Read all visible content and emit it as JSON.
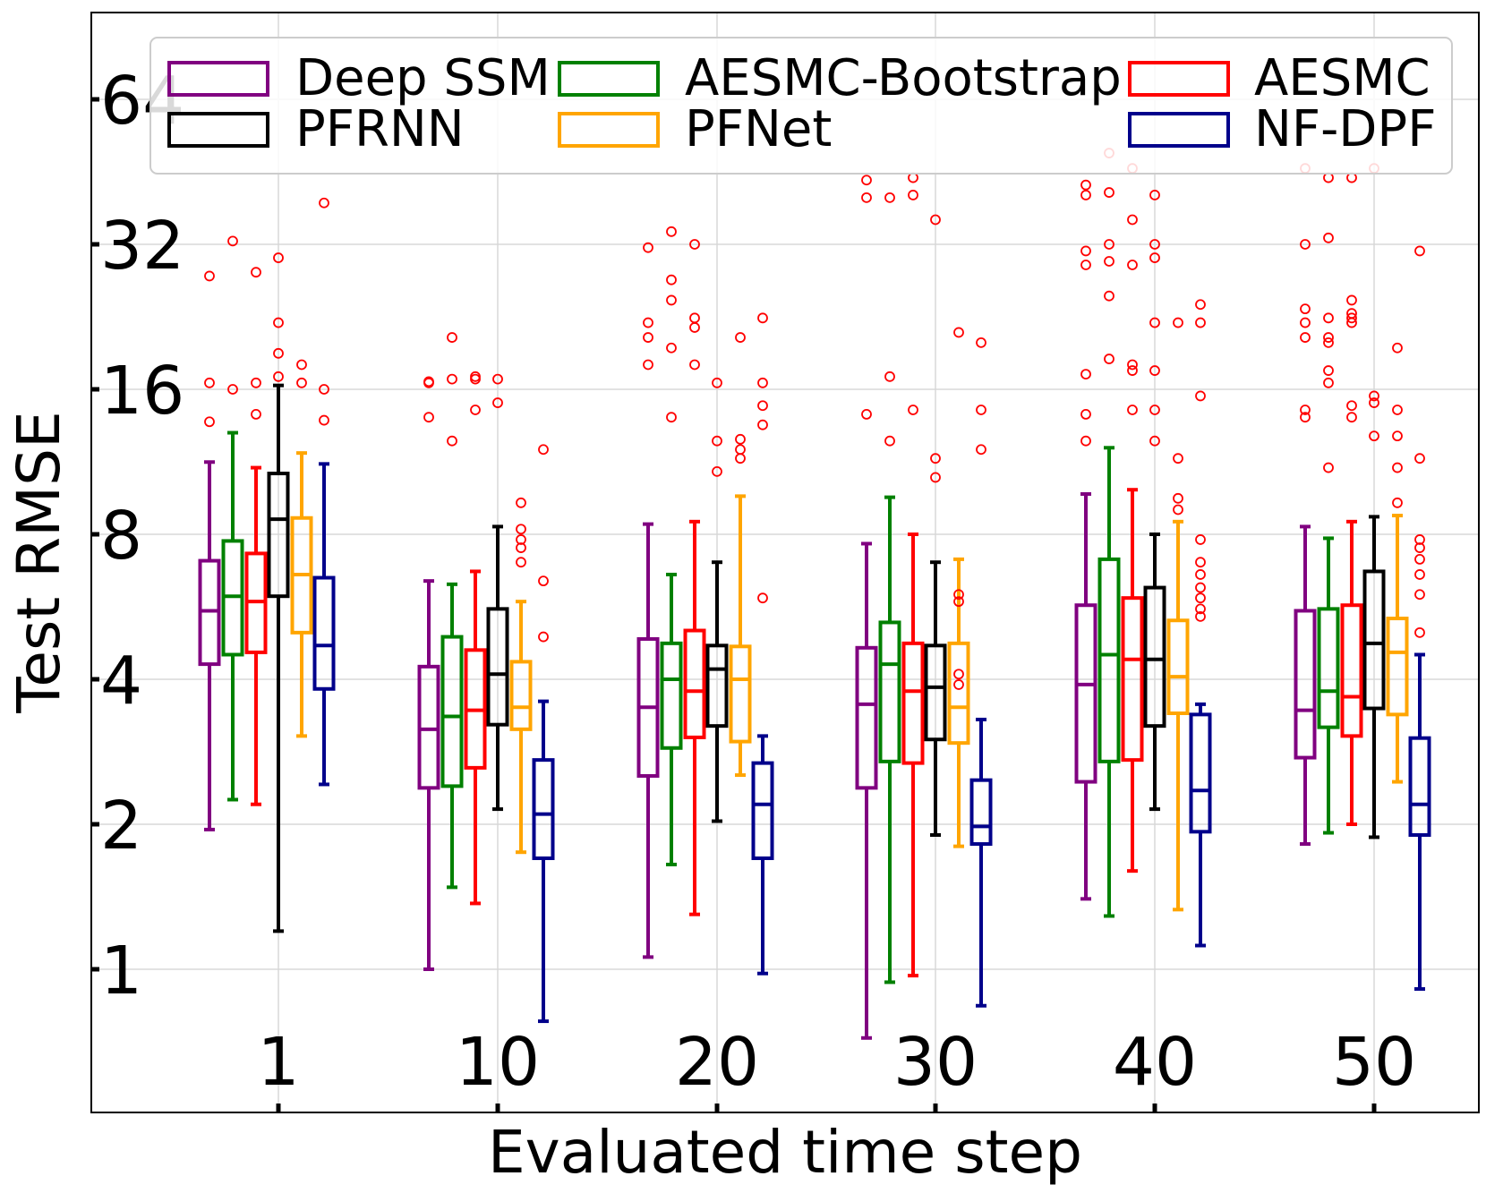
{
  "chart_data": {
    "type": "box",
    "xlabel": "Evaluated time step",
    "ylabel": "Test RMSE",
    "y_scale": "log2",
    "ylim": [
      0.75,
      90
    ],
    "y_ticks": [
      1,
      2,
      4,
      8,
      16,
      32,
      64
    ],
    "y_tick_labels": [
      "1",
      "2",
      "4",
      "8",
      "16",
      "32",
      "64"
    ],
    "categories": [
      "1",
      "10",
      "20",
      "30",
      "40",
      "50"
    ],
    "grid": true,
    "legend_position": "top",
    "outlier_color": "#ff0000",
    "series": [
      {
        "name": "Deep SSM",
        "color": "#800080",
        "boxes": [
          {
            "whislo": 1.95,
            "q1": 4.3,
            "med": 5.55,
            "q3": 7.05,
            "whishi": 11.3,
            "fliers": [
              13.7,
              16.5,
              27.5
            ]
          },
          {
            "whislo": 1.0,
            "q1": 2.38,
            "med": 3.15,
            "q3": 4.25,
            "whishi": 6.4,
            "fliers": [
              14.0,
              16.5,
              16.6
            ]
          },
          {
            "whislo": 1.06,
            "q1": 2.52,
            "med": 3.5,
            "q3": 4.85,
            "whishi": 8.4,
            "fliers": [
              18.0,
              20.5,
              22.0,
              31.5
            ]
          },
          {
            "whislo": 0.72,
            "q1": 2.38,
            "med": 3.55,
            "q3": 4.65,
            "whishi": 7.65,
            "fliers": [
              14.2,
              40.0,
              43.5
            ]
          },
          {
            "whislo": 1.4,
            "q1": 2.45,
            "med": 3.9,
            "q3": 5.7,
            "whishi": 9.7,
            "fliers": [
              12.5,
              14.2,
              17.2,
              29.0,
              31.0,
              40.5,
              42.5
            ]
          },
          {
            "whislo": 1.82,
            "q1": 2.75,
            "med": 3.45,
            "q3": 5.55,
            "whishi": 8.3,
            "fliers": [
              14.0,
              14.5,
              20.5,
              22.0,
              23.5,
              32.0,
              46.0
            ]
          }
        ]
      },
      {
        "name": "AESMC-Bootstrap",
        "color": "#008000",
        "boxes": [
          {
            "whislo": 2.25,
            "q1": 4.5,
            "med": 5.95,
            "q3": 7.75,
            "whishi": 13.0,
            "fliers": [
              16.0,
              32.5
            ]
          },
          {
            "whislo": 1.48,
            "q1": 2.4,
            "med": 3.35,
            "q3": 4.9,
            "whishi": 6.3,
            "fliers": [
              12.5,
              16.8,
              20.5
            ]
          },
          {
            "whislo": 1.65,
            "q1": 2.88,
            "med": 4.0,
            "q3": 4.75,
            "whishi": 6.6,
            "fliers": [
              14.0,
              19.5,
              24.5,
              27.0,
              34.0
            ]
          },
          {
            "whislo": 0.94,
            "q1": 2.7,
            "med": 4.3,
            "q3": 5.25,
            "whishi": 9.55,
            "fliers": [
              12.5,
              17.0,
              40.0
            ]
          },
          {
            "whislo": 1.29,
            "q1": 2.7,
            "med": 4.5,
            "q3": 7.1,
            "whishi": 12.1,
            "fliers": [
              18.5,
              25.0,
              29.5,
              32.0,
              41.0,
              49.5
            ]
          },
          {
            "whislo": 1.92,
            "q1": 3.18,
            "med": 3.78,
            "q3": 5.6,
            "whishi": 7.85,
            "fliers": [
              11.0,
              16.5,
              17.5,
              20.0,
              20.5,
              22.5,
              33.0,
              44.0
            ]
          }
        ]
      },
      {
        "name": "AESMC",
        "color": "#ff0000",
        "boxes": [
          {
            "whislo": 2.2,
            "q1": 4.55,
            "med": 5.8,
            "q3": 7.3,
            "whishi": 11.0,
            "fliers": [
              14.2,
              16.5,
              28.0
            ]
          },
          {
            "whislo": 1.37,
            "q1": 2.62,
            "med": 3.45,
            "q3": 4.6,
            "whishi": 6.7,
            "fliers": [
              14.5,
              16.8,
              17.0
            ]
          },
          {
            "whislo": 1.3,
            "q1": 3.03,
            "med": 3.78,
            "q3": 5.05,
            "whishi": 8.5,
            "fliers": [
              18.0,
              21.5,
              22.5,
              32.0
            ]
          },
          {
            "whislo": 0.97,
            "q1": 2.68,
            "med": 3.78,
            "q3": 4.75,
            "whishi": 8.0,
            "fliers": [
              14.5,
              40.5,
              44.0
            ]
          },
          {
            "whislo": 1.6,
            "q1": 2.72,
            "med": 4.4,
            "q3": 5.9,
            "whishi": 9.9,
            "fliers": [
              14.5,
              17.5,
              18.0,
              29.0,
              36.0,
              46.0
            ]
          },
          {
            "whislo": 2.0,
            "q1": 3.05,
            "med": 3.68,
            "q3": 5.7,
            "whishi": 8.5,
            "fliers": [
              14.0,
              14.8,
              22.0,
              22.5,
              23.0,
              24.5,
              44.0
            ]
          }
        ]
      },
      {
        "name": "PFRNN",
        "color": "#000000",
        "boxes": [
          {
            "whislo": 1.2,
            "q1": 5.95,
            "med": 8.6,
            "q3": 10.7,
            "whishi": 16.3,
            "fliers": [
              17.0,
              19.0,
              22.0,
              30.0
            ]
          },
          {
            "whislo": 2.15,
            "q1": 3.22,
            "med": 4.1,
            "q3": 5.6,
            "whishi": 8.3,
            "fliers": [
              15.0,
              16.8
            ]
          },
          {
            "whislo": 2.03,
            "q1": 3.2,
            "med": 4.2,
            "q3": 4.7,
            "whishi": 7.0,
            "fliers": [
              10.8,
              12.5,
              16.5
            ]
          },
          {
            "whislo": 1.9,
            "q1": 3.0,
            "med": 3.85,
            "q3": 4.7,
            "whishi": 7.0,
            "fliers": [
              10.5,
              11.5,
              36.0
            ]
          },
          {
            "whislo": 2.15,
            "q1": 3.2,
            "med": 4.4,
            "q3": 6.2,
            "whishi": 8.0,
            "fliers": [
              12.5,
              14.5,
              17.5,
              22.0,
              30.0,
              32.0,
              40.5
            ]
          },
          {
            "whislo": 1.88,
            "q1": 3.48,
            "med": 4.75,
            "q3": 6.7,
            "whishi": 8.7,
            "fliers": [
              12.8,
              15.0,
              15.5,
              46.0
            ]
          }
        ]
      },
      {
        "name": "PFNet",
        "color": "#ffa500",
        "boxes": [
          {
            "whislo": 3.05,
            "q1": 5.0,
            "med": 6.6,
            "q3": 8.65,
            "whishi": 11.8,
            "fliers": [
              16.5,
              18.0
            ]
          },
          {
            "whislo": 1.75,
            "q1": 3.15,
            "med": 3.5,
            "q3": 4.35,
            "whishi": 5.8,
            "fliers": [
              7.0,
              7.5,
              7.8,
              8.2,
              9.3
            ]
          },
          {
            "whislo": 2.53,
            "q1": 2.97,
            "med": 4.0,
            "q3": 4.68,
            "whishi": 9.6,
            "fliers": [
              11.5,
              12.0,
              12.6,
              20.5
            ]
          },
          {
            "whislo": 1.8,
            "q1": 2.95,
            "med": 3.5,
            "q3": 4.75,
            "whishi": 7.1,
            "fliers": [
              3.9,
              4.1,
              5.8,
              6.0,
              21.0
            ]
          },
          {
            "whislo": 1.33,
            "q1": 3.4,
            "med": 4.05,
            "q3": 5.3,
            "whishi": 8.5,
            "fliers": [
              9.0,
              9.5,
              11.5,
              22.0
            ]
          },
          {
            "whislo": 2.45,
            "q1": 3.38,
            "med": 4.55,
            "q3": 5.35,
            "whishi": 8.75,
            "fliers": [
              9.3,
              11.0,
              12.8,
              14.5,
              19.5
            ]
          }
        ]
      },
      {
        "name": "NF-DPF",
        "color": "#00008b",
        "boxes": [
          {
            "whislo": 2.42,
            "q1": 3.82,
            "med": 4.7,
            "q3": 6.5,
            "whishi": 11.2,
            "fliers": [
              13.8,
              16.0,
              39.0
            ]
          },
          {
            "whislo": 0.78,
            "q1": 1.7,
            "med": 2.1,
            "q3": 2.72,
            "whishi": 3.6,
            "fliers": [
              4.9,
              6.4,
              12.0
            ]
          },
          {
            "whislo": 0.98,
            "q1": 1.7,
            "med": 2.2,
            "q3": 2.68,
            "whishi": 3.05,
            "fliers": [
              5.9,
              13.5,
              14.8,
              16.5,
              22.5
            ]
          },
          {
            "whislo": 0.84,
            "q1": 1.82,
            "med": 1.98,
            "q3": 2.47,
            "whishi": 3.3,
            "fliers": [
              12.0,
              14.5,
              20.0
            ]
          },
          {
            "whislo": 1.12,
            "q1": 1.93,
            "med": 2.35,
            "q3": 3.38,
            "whishi": 3.55,
            "fliers": [
              5.4,
              5.6,
              5.9,
              6.2,
              6.6,
              7.0,
              7.8,
              15.5,
              22.0,
              24.0
            ]
          },
          {
            "whislo": 0.91,
            "q1": 1.9,
            "med": 2.2,
            "q3": 3.02,
            "whishi": 4.5,
            "fliers": [
              5.0,
              6.0,
              6.6,
              7.1,
              7.5,
              7.8,
              11.5,
              31.0
            ]
          }
        ]
      }
    ]
  }
}
